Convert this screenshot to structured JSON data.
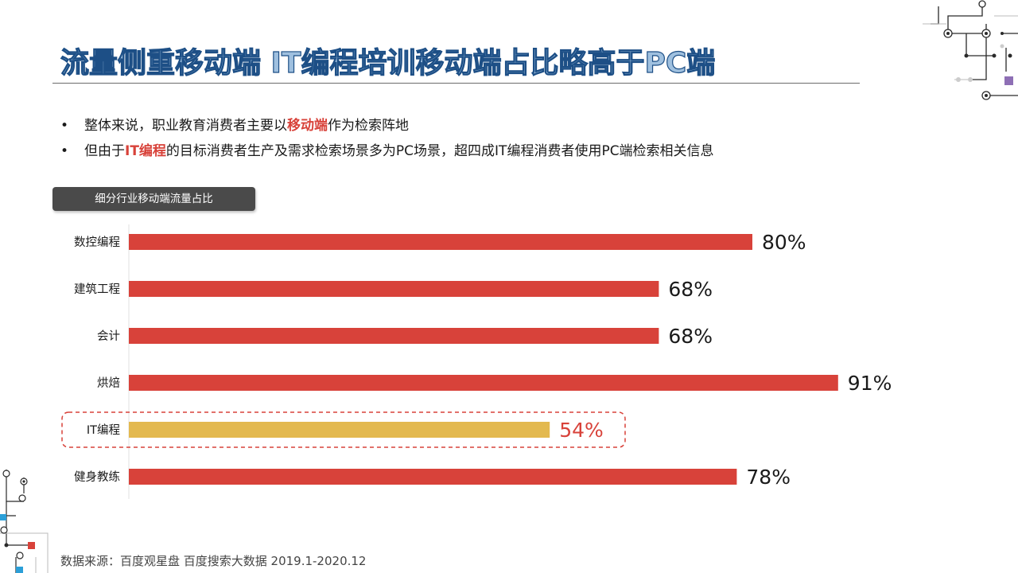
{
  "header": {
    "title": "流量侧重移动端  IT编程培训移动端占比略高于PC端"
  },
  "bullets": {
    "item1": {
      "bullet": "•",
      "prefix": "整体来说，职业教育消费者主要以",
      "highlight": "移动端",
      "suffix": "作为检索阵地"
    },
    "item2": {
      "bullet": "•",
      "prefix": "但由于",
      "highlight": "IT编程",
      "suffix": "的目标消费者生产及需求检索场景多为PC场景，超四成IT编程消费者使用PC端检索相关信息"
    }
  },
  "chart_tag": "细分行业移动端流量占比",
  "chart_data": {
    "type": "bar",
    "orientation": "horizontal",
    "categories": [
      "数控编程",
      "建筑工程",
      "会计",
      "烘焙",
      "IT编程",
      "健身教练"
    ],
    "values": [
      80,
      68,
      68,
      91,
      54,
      78
    ],
    "value_labels": [
      "80%",
      "68%",
      "68%",
      "91%",
      "54%",
      "78%"
    ],
    "xlim": [
      0,
      100
    ],
    "highlight_category": "IT编程",
    "colors": {
      "bar": "#d8423a",
      "highlight_bar": "#e3b94f",
      "highlight_label": "#d8423a",
      "highlight_box": "#d8423a"
    },
    "grid": false
  },
  "footer": {
    "source": "数据来源：百度观星盘 百度搜索大数据 2019.1-2020.12"
  },
  "colors": {
    "title_fill": "#9fc0df",
    "title_stroke": "#1d4f86",
    "accent": "#d8423a",
    "tag_bg": "#4a4a4a"
  }
}
